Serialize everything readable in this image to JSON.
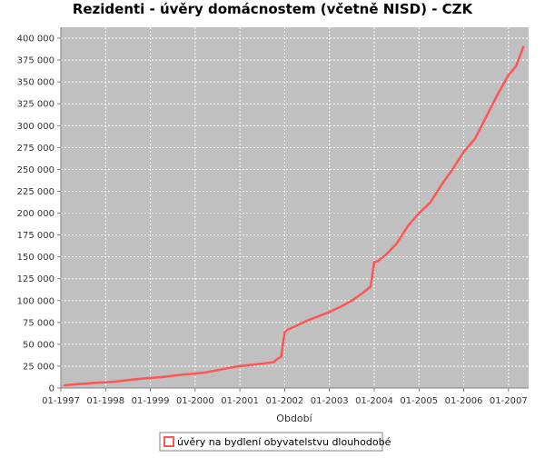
{
  "chart_data": {
    "type": "line",
    "title": "Rezidenti - úvěry domácnostem (včetně NISD) - CZK",
    "xlabel": "Období",
    "ylabel": "",
    "ylim": [
      0,
      412500
    ],
    "xlim": [
      1997.0,
      2007.45
    ],
    "y_ticks": [
      {
        "value": 0,
        "label": "0"
      },
      {
        "value": 25000,
        "label": "25 000"
      },
      {
        "value": 50000,
        "label": "50 000"
      },
      {
        "value": 75000,
        "label": "75 000"
      },
      {
        "value": 100000,
        "label": "100 000"
      },
      {
        "value": 125000,
        "label": "125 000"
      },
      {
        "value": 150000,
        "label": "150 000"
      },
      {
        "value": 175000,
        "label": "175 000"
      },
      {
        "value": 200000,
        "label": "200 000"
      },
      {
        "value": 225000,
        "label": "225 000"
      },
      {
        "value": 250000,
        "label": "250 000"
      },
      {
        "value": 275000,
        "label": "275 000"
      },
      {
        "value": 300000,
        "label": "300 000"
      },
      {
        "value": 325000,
        "label": "325 000"
      },
      {
        "value": 350000,
        "label": "350 000"
      },
      {
        "value": 375000,
        "label": "375 000"
      },
      {
        "value": 400000,
        "label": "400 000"
      }
    ],
    "x_ticks": [
      {
        "value": 1997,
        "label": "01-1997"
      },
      {
        "value": 1998,
        "label": "01-1998"
      },
      {
        "value": 1999,
        "label": "01-1999"
      },
      {
        "value": 2000,
        "label": "01-2000"
      },
      {
        "value": 2001,
        "label": "01-2001"
      },
      {
        "value": 2002,
        "label": "01-2002"
      },
      {
        "value": 2003,
        "label": "01-2003"
      },
      {
        "value": 2004,
        "label": "01-2004"
      },
      {
        "value": 2005,
        "label": "01-2005"
      },
      {
        "value": 2006,
        "label": "01-2006"
      },
      {
        "value": 2007,
        "label": "01-2007"
      }
    ],
    "grid": true,
    "legend_position": "bottom",
    "series": [
      {
        "name": "úvěry na bydlení obyvatelstvu dlouhodobé",
        "color": "#ff5555",
        "x": [
          1997.08,
          1997.25,
          1997.5,
          1997.75,
          1998.0,
          1998.25,
          1998.5,
          1998.75,
          1999.0,
          1999.25,
          1999.5,
          1999.75,
          2000.0,
          2000.25,
          2000.5,
          2000.75,
          2001.0,
          2001.25,
          2001.5,
          2001.75,
          2001.83,
          2001.92,
          2002.0,
          2002.08,
          2002.25,
          2002.5,
          2002.75,
          2003.0,
          2003.25,
          2003.5,
          2003.75,
          2003.92,
          2004.0,
          2004.08,
          2004.25,
          2004.5,
          2004.75,
          2005.0,
          2005.25,
          2005.5,
          2005.75,
          2006.0,
          2006.25,
          2006.5,
          2006.75,
          2007.0,
          2007.17,
          2007.33
        ],
        "values": [
          3000,
          4000,
          5000,
          6000,
          6500,
          7500,
          9000,
          10500,
          11500,
          12500,
          14000,
          15500,
          16500,
          18000,
          20500,
          23000,
          25000,
          26500,
          28000,
          29500,
          33000,
          36000,
          64000,
          67000,
          71000,
          77000,
          82000,
          87000,
          93000,
          100000,
          109000,
          116000,
          144000,
          145000,
          152000,
          165000,
          185000,
          200000,
          212000,
          232000,
          250000,
          270000,
          285000,
          310000,
          335000,
          358000,
          368000,
          390000
        ]
      }
    ]
  }
}
